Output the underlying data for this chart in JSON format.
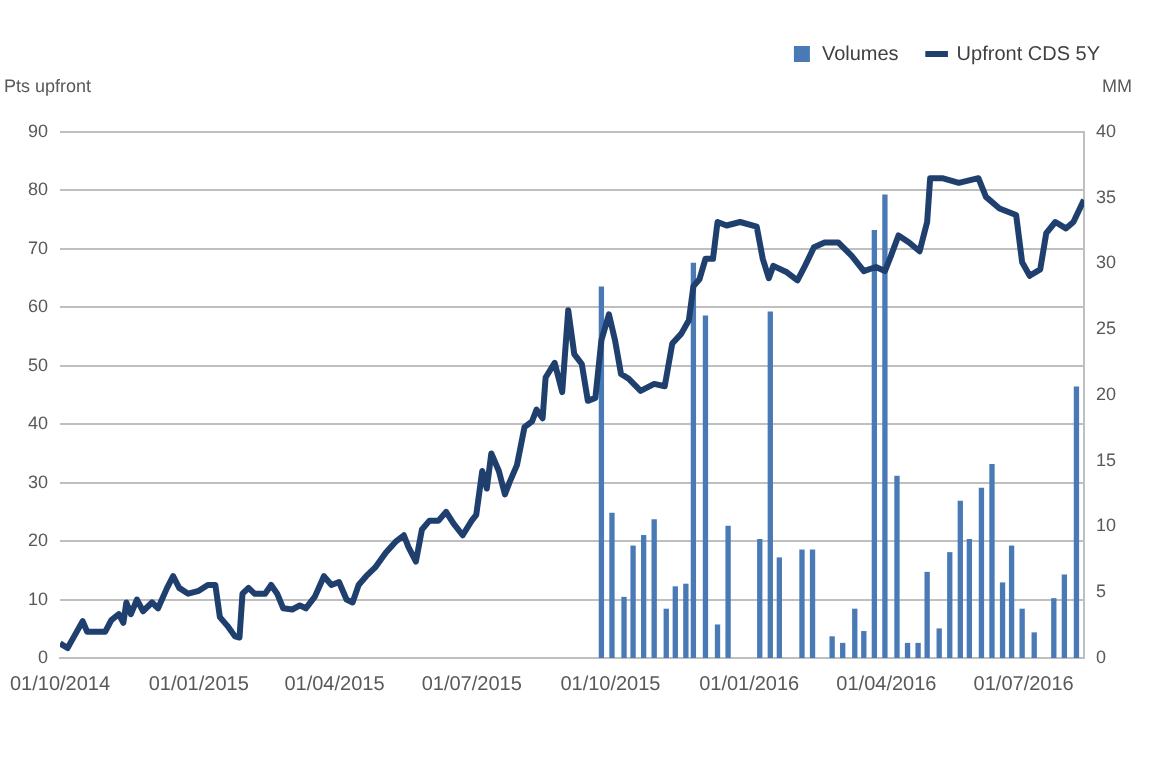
{
  "chart_data": {
    "type": "line",
    "ylabel": "Pts upfront",
    "y2label": "MM",
    "legend": "top",
    "grid": "y",
    "xlim": [
      "2014-10-01",
      "2016-08-10"
    ],
    "xticks": [
      {
        "value": "2014-10-01",
        "label": "01/10/2014"
      },
      {
        "value": "2015-01-01",
        "label": "01/01/2015"
      },
      {
        "value": "2015-04-01",
        "label": "01/04/2015"
      },
      {
        "value": "2015-07-01",
        "label": "01/07/2015"
      },
      {
        "value": "2015-10-01",
        "label": "01/10/2015"
      },
      {
        "value": "2016-01-01",
        "label": "01/01/2016"
      },
      {
        "value": "2016-04-01",
        "label": "01/04/2016"
      },
      {
        "value": "2016-07-01",
        "label": "01/07/2016"
      }
    ],
    "ylim": [
      0,
      90
    ],
    "yticks": [
      0,
      10,
      20,
      30,
      40,
      50,
      60,
      70,
      80,
      90
    ],
    "y2lim": [
      0,
      40
    ],
    "y2ticks": [
      0,
      5,
      10,
      15,
      20,
      25,
      30,
      35,
      40
    ],
    "series": [
      {
        "name": "Volumes",
        "type": "bar",
        "axis": "y2",
        "color": "#4a7ab5",
        "x": [
          "2015-09-25",
          "2015-10-02",
          "2015-10-10",
          "2015-10-16",
          "2015-10-23",
          "2015-10-30",
          "2015-11-07",
          "2015-11-13",
          "2015-11-20",
          "2015-11-25",
          "2015-12-03",
          "2015-12-11",
          "2015-12-18",
          "2016-01-08",
          "2016-01-15",
          "2016-01-21",
          "2016-02-05",
          "2016-02-12",
          "2016-02-25",
          "2016-03-03",
          "2016-03-11",
          "2016-03-17",
          "2016-03-24",
          "2016-03-31",
          "2016-04-08",
          "2016-04-15",
          "2016-04-22",
          "2016-04-28",
          "2016-05-06",
          "2016-05-13",
          "2016-05-20",
          "2016-05-26",
          "2016-06-03",
          "2016-06-10",
          "2016-06-17",
          "2016-06-23",
          "2016-06-30",
          "2016-07-08",
          "2016-07-21",
          "2016-07-28",
          "2016-08-05"
        ],
        "values": [
          28.2,
          11,
          4.6,
          8.5,
          9.3,
          10.5,
          3.7,
          5.4,
          5.6,
          30,
          26,
          2.5,
          10,
          9,
          26.3,
          7.6,
          8.2,
          8.2,
          1.6,
          1.1,
          3.7,
          2,
          32.5,
          35.2,
          13.8,
          1.1,
          1.1,
          6.5,
          2.2,
          8,
          11.9,
          9,
          12.9,
          14.7,
          5.7,
          8.5,
          3.7,
          1.9,
          4.5,
          6.3,
          20.6
        ]
      },
      {
        "name": "Upfront CDS 5Y",
        "type": "line",
        "axis": "y",
        "color": "#1f3f6e",
        "x": [
          "2014-10-01",
          "2014-10-06",
          "2014-10-11",
          "2014-10-16",
          "2014-10-19",
          "2014-10-26",
          "2014-10-31",
          "2014-11-04",
          "2014-11-09",
          "2014-11-12",
          "2014-11-14",
          "2014-11-17",
          "2014-11-21",
          "2014-11-25",
          "2014-12-01",
          "2014-12-05",
          "2014-12-11",
          "2014-12-15",
          "2014-12-19",
          "2014-12-25",
          "2015-01-01",
          "2015-01-07",
          "2015-01-12",
          "2015-01-15",
          "2015-01-20",
          "2015-01-25",
          "2015-01-28",
          "2015-01-30",
          "2015-02-03",
          "2015-02-07",
          "2015-02-14",
          "2015-02-18",
          "2015-02-22",
          "2015-02-26",
          "2015-03-04",
          "2015-03-09",
          "2015-03-13",
          "2015-03-19",
          "2015-03-25",
          "2015-03-30",
          "2015-04-04",
          "2015-04-09",
          "2015-04-13",
          "2015-04-17",
          "2015-04-22",
          "2015-04-28",
          "2015-05-05",
          "2015-05-12",
          "2015-05-17",
          "2015-05-20",
          "2015-05-25",
          "2015-05-29",
          "2015-06-03",
          "2015-06-09",
          "2015-06-14",
          "2015-06-19",
          "2015-06-25",
          "2015-07-01",
          "2015-07-04",
          "2015-07-08",
          "2015-07-11",
          "2015-07-14",
          "2015-07-19",
          "2015-07-23",
          "2015-07-26",
          "2015-07-31",
          "2015-08-05",
          "2015-08-10",
          "2015-08-13",
          "2015-08-17",
          "2015-08-19",
          "2015-08-25",
          "2015-08-30",
          "2015-09-03",
          "2015-09-07",
          "2015-09-12",
          "2015-09-16",
          "2015-09-21",
          "2015-09-25",
          "2015-09-30",
          "2015-10-04",
          "2015-10-08",
          "2015-10-13",
          "2015-10-21",
          "2015-10-30",
          "2015-11-06",
          "2015-11-11",
          "2015-11-17",
          "2015-11-22",
          "2015-11-25",
          "2015-11-29",
          "2015-12-03",
          "2015-12-08",
          "2015-12-11",
          "2015-12-17",
          "2015-12-26",
          "2016-01-06",
          "2016-01-10",
          "2016-01-14",
          "2016-01-17",
          "2016-01-26",
          "2016-02-02",
          "2016-02-07",
          "2016-02-13",
          "2016-02-20",
          "2016-02-29",
          "2016-03-09",
          "2016-03-17",
          "2016-03-25",
          "2016-03-31",
          "2016-04-04",
          "2016-04-09",
          "2016-04-16",
          "2016-04-23",
          "2016-04-28",
          "2016-04-30",
          "2016-05-08",
          "2016-05-19",
          "2016-06-01",
          "2016-06-06",
          "2016-06-15",
          "2016-06-26",
          "2016-06-30",
          "2016-07-05",
          "2016-07-12",
          "2016-07-16",
          "2016-07-22",
          "2016-07-29",
          "2016-08-03",
          "2016-08-10"
        ],
        "values": [
          2.5,
          1.7,
          4,
          6.3,
          4.5,
          4.5,
          4.5,
          6.5,
          7.5,
          6,
          9.5,
          7.5,
          10,
          8,
          9.5,
          8.5,
          12,
          14,
          12,
          11,
          11.5,
          12.5,
          12.5,
          7,
          5.5,
          3.7,
          3.5,
          11,
          12,
          11,
          11,
          12.5,
          11,
          8.5,
          8.3,
          9,
          8.5,
          10.5,
          14,
          12.5,
          13,
          10,
          9.5,
          12.5,
          14,
          15.5,
          18,
          20,
          21,
          19,
          16.5,
          22,
          23.5,
          23.5,
          25,
          23,
          21,
          23.5,
          24.5,
          32,
          29,
          35,
          32,
          28,
          30,
          33,
          39.5,
          40.5,
          42.5,
          41,
          48,
          50.5,
          45.5,
          59.5,
          52,
          50.3,
          44,
          44.5,
          54.4,
          58.8,
          54.4,
          48.6,
          47.8,
          45.7,
          46.9,
          46.5,
          53.8,
          55.5,
          57.8,
          63.6,
          64.8,
          68.3,
          68.3,
          74.6,
          74,
          74.6,
          73.8,
          68.3,
          65,
          67.1,
          66,
          64.6,
          67.1,
          70.3,
          71.1,
          71.1,
          68.8,
          66.2,
          66.9,
          66.2,
          68.8,
          72.3,
          71.1,
          69.6,
          74.6,
          82.1,
          82.1,
          81.3,
          82.1,
          78.9,
          76.9,
          75.8,
          67.7,
          65.4,
          66.5,
          72.7,
          74.6,
          73.5,
          74.6,
          78.4
        ]
      }
    ]
  }
}
